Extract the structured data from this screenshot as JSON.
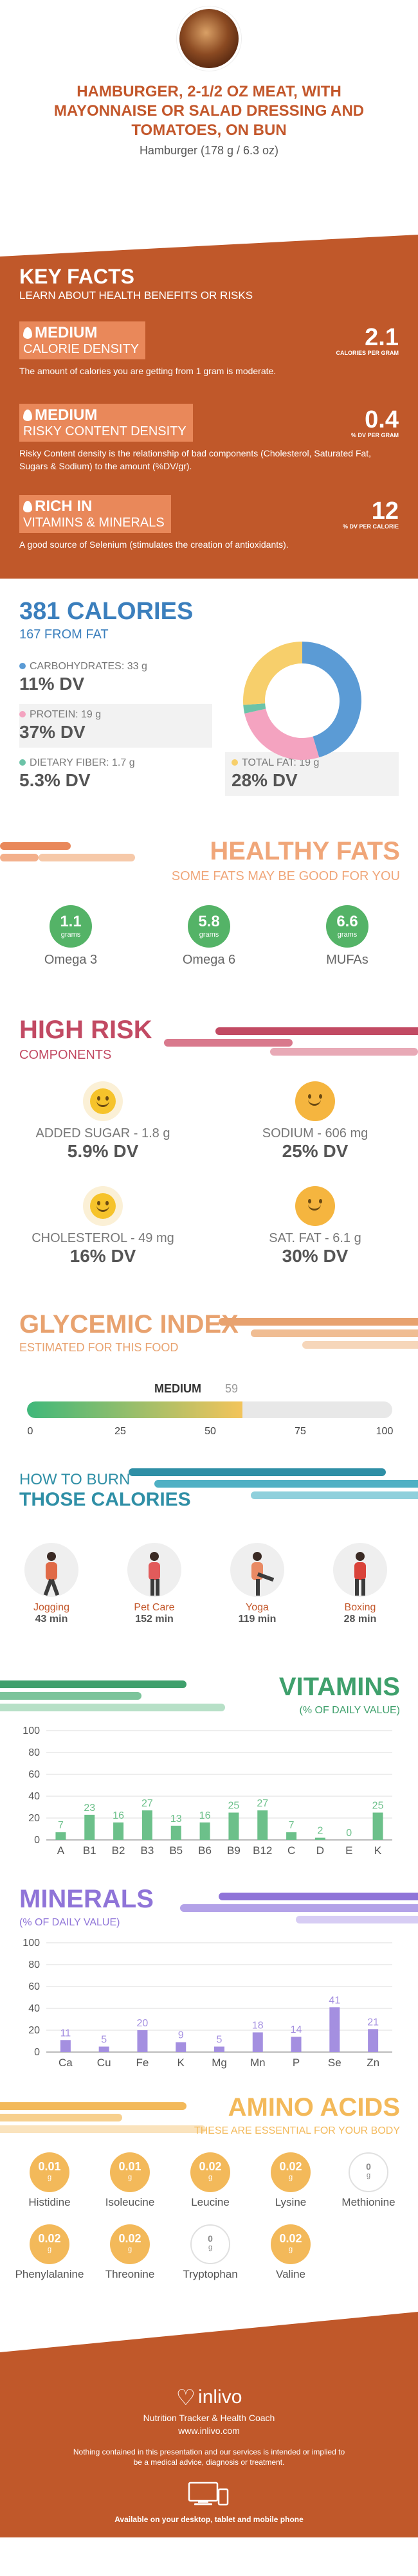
{
  "header": {
    "title": "HAMBURGER, 2-1/2 OZ MEAT, WITH MAYONNAISE OR SALAD DRESSING AND TOMATOES, ON BUN",
    "subtitle": "Hamburger (178 g / 6.3 oz)"
  },
  "key_facts": {
    "title": "KEY FACTS",
    "subtitle": "LEARN ABOUT HEALTH BENEFITS OR RISKS",
    "items": [
      {
        "level": "MEDIUM",
        "name": "CALORIE DENSITY",
        "value": "2.1",
        "unit": "CALORIES PER GRAM",
        "icon": "flame-icon",
        "desc": "The amount of calories you are getting from 1 gram is moderate."
      },
      {
        "level": "MEDIUM",
        "name": "RISKY CONTENT DENSITY",
        "value": "0.4",
        "unit": "% DV PER GRAM",
        "icon": "warning-icon",
        "desc": "Risky Content density is the relationship of bad components (Cholesterol, Saturated Fat, Sugars & Sodium) to the amount (%DV/gr)."
      },
      {
        "level": "RICH IN",
        "name": "VITAMINS & MINERALS",
        "value": "12",
        "unit": "% DV PER CALORIE",
        "icon": "flame-icon",
        "desc": "A good source of Selenium (stimulates the creation of antioxidants)."
      }
    ]
  },
  "calories": {
    "title": "381 CALORIES",
    "from_fat": "167 FROM FAT",
    "macros": [
      {
        "label": "CARBOHYDRATES: 33 g",
        "dv": "11% DV",
        "color": "#5b9bd5"
      },
      {
        "label": "PROTEIN: 19 g",
        "dv": "37% DV",
        "color": "#f4a3c0"
      },
      {
        "label": "DIETARY FIBER: 1.7 g",
        "dv": "5.3% DV",
        "color": "#6cc3a8"
      },
      {
        "label": "TOTAL FAT: 19 g",
        "dv": "28% DV",
        "color": "#f7cf6b"
      }
    ],
    "donut": [
      {
        "name": "CARBOHYDRATES",
        "value": 33,
        "color": "#5b9bd5"
      },
      {
        "name": "PROTEIN",
        "value": 19,
        "color": "#f4a3c0"
      },
      {
        "name": "DIETARY FIBER",
        "value": 1.7,
        "color": "#6cc3a8"
      },
      {
        "name": "TOTAL FAT",
        "value": 19,
        "color": "#f7cf6b"
      }
    ]
  },
  "healthy_fats": {
    "title": "HEALTHY FATS",
    "subtitle": "SOME FATS MAY BE GOOD FOR YOU",
    "items": [
      {
        "value": "1.1",
        "unit": "grams",
        "name": "Omega 3"
      },
      {
        "value": "5.8",
        "unit": "grams",
        "name": "Omega 6"
      },
      {
        "value": "6.6",
        "unit": "grams",
        "name": "MUFAs"
      }
    ]
  },
  "high_risk": {
    "title": "HIGH RISK",
    "subtitle": "COMPONENTS",
    "items": [
      {
        "label": "ADDED SUGAR - 1.8 g",
        "dv": "5.9% DV",
        "icon": "smiley-icon"
      },
      {
        "label": "SODIUM - 606 mg",
        "dv": "25% DV",
        "icon": "smiley-icon"
      },
      {
        "label": "CHOLESTEROL - 49 mg",
        "dv": "16% DV",
        "icon": "smiley-icon"
      },
      {
        "label": "SAT. FAT - 6.1 g",
        "dv": "30% DV",
        "icon": "smiley-icon"
      }
    ]
  },
  "glycemic": {
    "title": "GLYCEMIC INDEX",
    "subtitle": "ESTIMATED FOR THIS FOOD",
    "level": "MEDIUM",
    "value": 59,
    "value_label": "59",
    "ticks": [
      "0",
      "25",
      "50",
      "75",
      "100"
    ]
  },
  "burn": {
    "title_line1": "HOW TO BURN",
    "title_line2": "THOSE CALORIES",
    "items": [
      {
        "activity": "Jogging",
        "time": "43 min",
        "icon": "jogging-icon"
      },
      {
        "activity": "Pet Care",
        "time": "152 min",
        "icon": "pet-care-icon"
      },
      {
        "activity": "Yoga",
        "time": "119 min",
        "icon": "yoga-icon"
      },
      {
        "activity": "Boxing",
        "time": "28 min",
        "icon": "boxing-icon"
      }
    ]
  },
  "vitamins": {
    "title": "VITAMINS",
    "subtitle": "(% OF DAILY VALUE)"
  },
  "minerals": {
    "title": "MINERALS",
    "subtitle": "(% OF DAILY VALUE)"
  },
  "chart_data": [
    {
      "type": "bar",
      "title": "VITAMINS",
      "ylabel": "",
      "categories": [
        "A",
        "B1",
        "B2",
        "B3",
        "B5",
        "B6",
        "B9",
        "B12",
        "C",
        "D",
        "E",
        "K"
      ],
      "values": [
        7,
        23,
        16,
        27,
        13,
        16,
        25,
        27,
        7,
        2,
        0,
        25
      ],
      "ylim": [
        0,
        100
      ],
      "yticks": [
        0,
        20,
        40,
        60,
        80,
        100
      ],
      "color": "#6cc08a",
      "grid": true
    },
    {
      "type": "bar",
      "title": "MINERALS",
      "ylabel": "",
      "categories": [
        "Ca",
        "Cu",
        "Fe",
        "K",
        "Mg",
        "Mn",
        "P",
        "Se",
        "Zn"
      ],
      "values": [
        11,
        5,
        20,
        9,
        5,
        18,
        14,
        41,
        21
      ],
      "ylim": [
        0,
        100
      ],
      "yticks": [
        0,
        20,
        40,
        60,
        80,
        100
      ],
      "color": "#a48fe0",
      "grid": true
    }
  ],
  "amino": {
    "title": "AMINO ACIDS",
    "subtitle": "THESE ARE ESSENTIAL FOR YOUR BODY",
    "items": [
      {
        "value": "0.01",
        "unit": "g",
        "name": "Histidine",
        "color": "#f3b95a"
      },
      {
        "value": "0.01",
        "unit": "g",
        "name": "Isoleucine",
        "color": "#f3b95a"
      },
      {
        "value": "0.02",
        "unit": "g",
        "name": "Leucine",
        "color": "#f3b95a"
      },
      {
        "value": "0.02",
        "unit": "g",
        "name": "Lysine",
        "color": "#f3b95a"
      },
      {
        "value": "0",
        "unit": "g",
        "name": "Methionine",
        "color": "#d8d8d8"
      },
      {
        "value": "0.02",
        "unit": "g",
        "name": "Phenylalanine",
        "color": "#f3b95a"
      },
      {
        "value": "0.02",
        "unit": "g",
        "name": "Threonine",
        "color": "#f3b95a"
      },
      {
        "value": "0",
        "unit": "g",
        "name": "Tryptophan",
        "color": "#d8d8d8"
      },
      {
        "value": "0.02",
        "unit": "g",
        "name": "Valine",
        "color": "#f3b95a"
      }
    ]
  },
  "footer": {
    "brand": "inlivo",
    "tagline": "Nutrition Tracker & Health Coach",
    "url": "www.inlivo.com",
    "disclaimer": "Nothing contained in this presentation and our services is intended or implied to be a medical advice, diagnosis or treatment.",
    "available": "Available on your desktop, tablet and mobile phone"
  }
}
